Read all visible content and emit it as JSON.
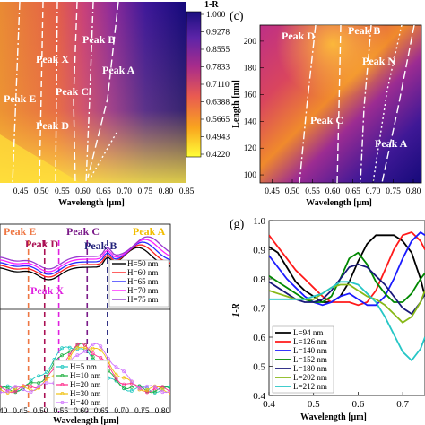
{
  "chart_data": [
    {
      "type": "heatmap",
      "panel": "",
      "xlabel": "Wavelength [μm]",
      "x_ticks": [
        "0.45",
        "0.50",
        "0.55",
        "0.60",
        "0.65",
        "0.70",
        "0.75",
        "0.80",
        "0.85"
      ],
      "xlim": [
        0.4,
        0.85
      ],
      "colorbar": {
        "title": "1-R",
        "ticks": [
          "1.000",
          "0.9278",
          "0.8555",
          "0.7833",
          "0.7110",
          "0.6388",
          "0.5665",
          "0.4943",
          "0.4220"
        ],
        "range": [
          0.422,
          1.0
        ],
        "colors": [
          "#ffff38",
          "#f9a51e",
          "#e95a51",
          "#a92c8a",
          "#5d24a8",
          "#1a0f7f"
        ]
      },
      "annotations": [
        "Peak B",
        "Peak X",
        "Peak A",
        "Peak C",
        "Peak E",
        "Peak D"
      ]
    },
    {
      "type": "heatmap",
      "panel": "(c)",
      "xlabel": "Wavelength [μm]",
      "ylabel": "Length [nm]",
      "x_ticks": [
        "0.45",
        "0.50",
        "0.55",
        "0.60",
        "0.65",
        "0.70",
        "0.75",
        "0.80"
      ],
      "xlim": [
        0.42,
        0.82
      ],
      "y_ticks": [
        "100",
        "120",
        "140",
        "160",
        "180",
        "200"
      ],
      "ylim": [
        94,
        212
      ],
      "annotations": [
        "Peak D",
        "Peak B",
        "Peak N",
        "Peak C",
        "Peak A"
      ]
    },
    {
      "type": "line",
      "panel": "",
      "xlabel": "Wavelength [μm]",
      "xlim": [
        0.4,
        0.82
      ],
      "x_ticks": [
        "0.40",
        "0.45",
        "0.50",
        "0.55",
        "0.60",
        "0.65",
        "0.70",
        "0.75",
        "0.80"
      ],
      "peak_labels": [
        {
          "text": "Peak E",
          "color": "#ee7744"
        },
        {
          "text": "Peak D",
          "color": "#aa1155"
        },
        {
          "text": "Peak C",
          "color": "#7a1a88"
        },
        {
          "text": "Peak B",
          "color": "#22227a"
        },
        {
          "text": "Peak A",
          "color": "#f2bd00"
        },
        {
          "text": "Peak X",
          "color": "#e020e0"
        }
      ],
      "peak_lines": [
        0.47,
        0.51,
        0.545,
        0.615,
        0.665
      ],
      "top_series": [
        {
          "name": "H=50 nm",
          "color": "#000000"
        },
        {
          "name": "H=60 nm",
          "color": "#ff2020"
        },
        {
          "name": "H=65 nm",
          "color": "#2a2aff"
        },
        {
          "name": "H=70 nm",
          "color": "#ff20ff"
        },
        {
          "name": "H=75 nm",
          "color": "#9a3ad0"
        }
      ],
      "bottom_series": [
        {
          "name": "H=5 nm",
          "color": "#1ec8c0"
        },
        {
          "name": "H=10 nm",
          "color": "#20b040"
        },
        {
          "name": "H=20 nm",
          "color": "#ff2a8a"
        },
        {
          "name": "H=30 nm",
          "color": "#f0c010"
        },
        {
          "name": "H=40 nm",
          "color": "#d070ff"
        }
      ]
    },
    {
      "type": "line",
      "panel": "(g)",
      "xlabel": "Wavelength [μm]",
      "ylabel": "1-R",
      "xlim": [
        0.4,
        0.75
      ],
      "ylim": [
        0.4,
        1.0
      ],
      "x_ticks": [
        "0.4",
        "0.5",
        "0.6",
        "0.7"
      ],
      "y_ticks": [
        "0.4",
        "0.5",
        "0.6",
        "0.7",
        "0.8",
        "0.9",
        "1.0"
      ],
      "x": [
        0.4,
        0.42,
        0.44,
        0.46,
        0.48,
        0.5,
        0.52,
        0.54,
        0.56,
        0.58,
        0.6,
        0.62,
        0.64,
        0.66,
        0.68,
        0.7,
        0.72,
        0.74,
        0.75
      ],
      "series": [
        {
          "name": "L=94 nm",
          "color": "#000000",
          "values": [
            0.91,
            0.89,
            0.84,
            0.79,
            0.76,
            0.74,
            0.72,
            0.72,
            0.74,
            0.79,
            0.86,
            0.92,
            0.95,
            0.95,
            0.95,
            0.93,
            0.89,
            0.8,
            0.74
          ]
        },
        {
          "name": "L=126 nm",
          "color": "#ff1a1a",
          "values": [
            0.95,
            0.91,
            0.87,
            0.83,
            0.8,
            0.77,
            0.74,
            0.72,
            0.72,
            0.72,
            0.71,
            0.72,
            0.76,
            0.83,
            0.9,
            0.95,
            0.96,
            0.93,
            0.9
          ]
        },
        {
          "name": "L=140 nm",
          "color": "#1a1aff",
          "values": [
            0.88,
            0.84,
            0.8,
            0.77,
            0.74,
            0.72,
            0.71,
            0.72,
            0.74,
            0.75,
            0.73,
            0.71,
            0.71,
            0.74,
            0.8,
            0.87,
            0.93,
            0.96,
            0.95
          ]
        },
        {
          "name": "L=152 nm",
          "color": "#008800",
          "values": [
            0.81,
            0.79,
            0.77,
            0.75,
            0.73,
            0.72,
            0.72,
            0.74,
            0.8,
            0.87,
            0.89,
            0.85,
            0.79,
            0.75,
            0.72,
            0.72,
            0.75,
            0.8,
            0.82
          ]
        },
        {
          "name": "L=180 nm",
          "color": "#18187a",
          "values": [
            0.79,
            0.77,
            0.75,
            0.73,
            0.72,
            0.72,
            0.73,
            0.76,
            0.8,
            0.84,
            0.85,
            0.84,
            0.81,
            0.78,
            0.74,
            0.7,
            0.68,
            0.72,
            0.75
          ]
        },
        {
          "name": "L=202 nm",
          "color": "#88b818",
          "values": [
            0.76,
            0.75,
            0.74,
            0.73,
            0.73,
            0.73,
            0.75,
            0.77,
            0.78,
            0.78,
            0.76,
            0.74,
            0.73,
            0.71,
            0.68,
            0.65,
            0.67,
            0.72,
            0.76
          ]
        },
        {
          "name": "L=212 nm",
          "color": "#26c6c6",
          "values": [
            0.73,
            0.73,
            0.73,
            0.73,
            0.73,
            0.74,
            0.75,
            0.77,
            0.79,
            0.79,
            0.78,
            0.75,
            0.72,
            0.67,
            0.61,
            0.55,
            0.52,
            0.56,
            0.6
          ]
        }
      ]
    }
  ]
}
